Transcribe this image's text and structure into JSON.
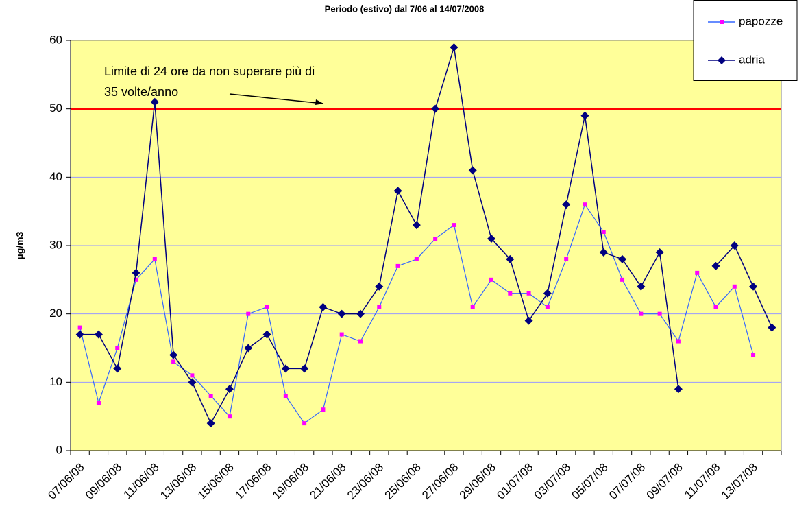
{
  "chart_data": {
    "type": "line",
    "title": "Periodo (estivo) dal 7/06 al 14/07/2008",
    "y_label": "µg/m3",
    "categories": [
      "07/06/08",
      null,
      "09/06/08",
      null,
      "11/06/08",
      null,
      "13/06/08",
      null,
      "15/06/08",
      null,
      "17/06/08",
      null,
      "19/06/08",
      null,
      "21/06/08",
      null,
      "23/06/08",
      null,
      "25/06/08",
      null,
      "27/06/08",
      null,
      "29/06/08",
      null,
      "01/07/08",
      null,
      "03/07/08",
      null,
      "05/07/08",
      null,
      "07/07/08",
      null,
      "09/07/08",
      null,
      "11/07/08",
      null,
      "13/07/08",
      null
    ],
    "series": [
      {
        "name": "papozze",
        "color": "#3366ff",
        "marker_color": "#ff00ff",
        "marker": "square",
        "values": [
          18,
          7,
          15,
          25,
          28,
          13,
          11,
          8,
          5,
          20,
          21,
          8,
          4,
          6,
          17,
          16,
          21,
          27,
          28,
          31,
          33,
          21,
          25,
          23,
          23,
          21,
          28,
          36,
          32,
          25,
          20,
          20,
          16,
          26,
          21,
          24,
          14,
          null
        ]
      },
      {
        "name": "adria",
        "color": "#000080",
        "marker_color": "#000080",
        "marker": "diamond",
        "values": [
          17,
          17,
          12,
          26,
          51,
          14,
          10,
          4,
          9,
          15,
          17,
          12,
          12,
          21,
          20,
          20,
          24,
          38,
          33,
          50,
          59,
          41,
          31,
          28,
          19,
          23,
          36,
          49,
          29,
          28,
          24,
          29,
          9,
          null,
          27,
          30,
          24,
          18
        ]
      }
    ],
    "threshold": {
      "value": 50,
      "color": "#ff0000"
    },
    "annotation": [
      "Limite di 24 ore da non superare più di",
      "35 volte/anno"
    ],
    "ylim": [
      0,
      60
    ],
    "yticks": [
      0,
      10,
      20,
      30,
      40,
      50,
      60
    ],
    "grid": true,
    "background": "#ffff99",
    "legend": "top-right"
  }
}
